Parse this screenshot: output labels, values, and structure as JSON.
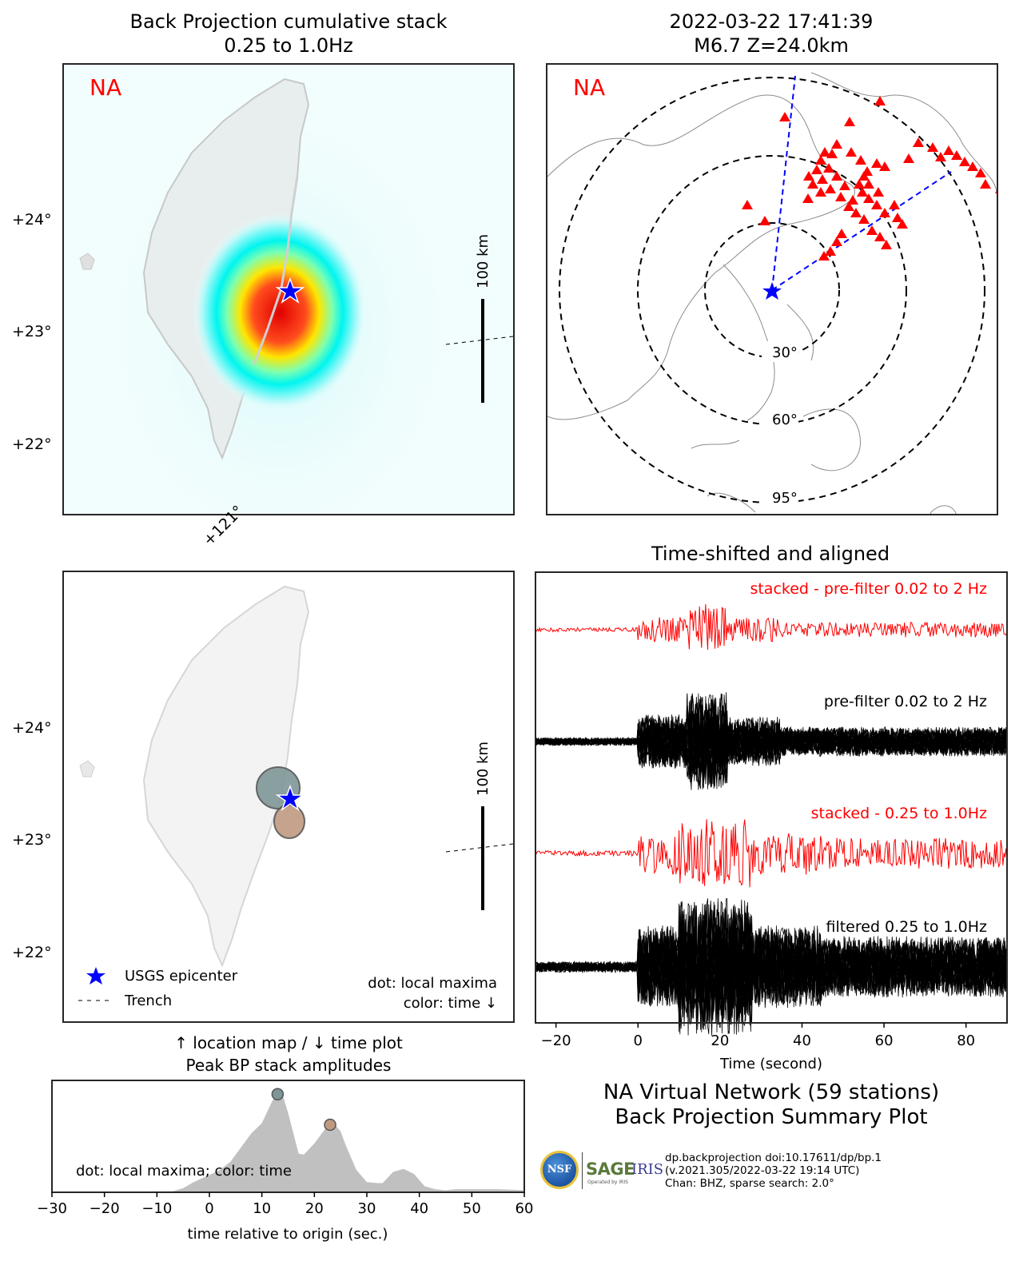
{
  "bp_map": {
    "title_line1": "Back Projection cumulative stack",
    "title_line2": "0.25 to 1.0Hz",
    "network_label": "NA",
    "lat_ticks": [
      "+24°",
      "+23°",
      "+22°"
    ],
    "lon_tick": "+121°",
    "scale_label": "100 km",
    "epicenter": {
      "lon": 121.55,
      "lat": 23.4
    }
  },
  "station_map": {
    "title_line1": "2022-03-22 17:41:39",
    "title_line2": "M6.7 Z=24.0km",
    "network_label": "NA",
    "distance_rings": [
      "30°",
      "60°",
      "95°"
    ],
    "station_count": 59,
    "colors": {
      "stations": "#ff0000",
      "azimuth_lines": "#0000ff",
      "rings": "#000000"
    }
  },
  "location_map": {
    "lat_ticks": [
      "+24°",
      "+23°",
      "+22°"
    ],
    "scale_label": "100 km",
    "legend": [
      {
        "label": "USGS epicenter",
        "symbol": "star",
        "color": "#0000ff"
      },
      {
        "label": "Trench",
        "symbol": "dashed-line",
        "color": "#000000"
      }
    ],
    "note_line1": "dot: local maxima",
    "note_line2": "color: time ↓",
    "maxima": [
      {
        "time": 13,
        "lon": 121.45,
        "lat": 23.47,
        "color": "#7f9696"
      },
      {
        "time": 23,
        "lon": 121.55,
        "lat": 23.18,
        "color": "#c09a80"
      }
    ]
  },
  "caption": {
    "line1": "↑ location map / ↓ time plot",
    "line2": "Peak BP stack amplitudes"
  },
  "waveforms": {
    "title": "Time-shifted and aligned",
    "xlabel": "Time (second)",
    "x_ticks": [
      -20,
      0,
      20,
      40,
      60,
      80
    ],
    "xlim": [
      -25,
      90
    ],
    "traces": [
      {
        "label": "stacked - pre-filter 0.02 to 2 Hz",
        "color": "#ff0000"
      },
      {
        "label": "pre-filter 0.02 to 2 Hz",
        "color": "#000000"
      },
      {
        "label": "stacked - 0.25 to 1.0Hz",
        "color": "#ff0000"
      },
      {
        "label": "filtered 0.25 to 1.0Hz",
        "color": "#000000"
      }
    ]
  },
  "summary": {
    "line1": "NA Virtual Network (59 stations)",
    "line2": "Back Projection Summary Plot",
    "credit_line1": "dp.backprojection doi:10.17611/dp/bp.1",
    "credit_line2": "(v.2021.305/2022-03-22 19:14 UTC)",
    "credit_line3": "Chan: BHZ, sparse search: 2.0°",
    "logo_nsf": "NSF",
    "logo_sage": "SAGE",
    "logo_iris": "IRIS",
    "logo_operated": "Operated by IRIS"
  },
  "chart_data": {
    "type": "area",
    "title": "Peak BP stack amplitudes",
    "xlabel": "time relative to origin (sec.)",
    "ylabel": "",
    "xlim": [
      -30,
      60
    ],
    "ylim": [
      0,
      1.1
    ],
    "x_ticks": [
      -30,
      -20,
      -10,
      0,
      10,
      20,
      30,
      40,
      50,
      60
    ],
    "annotation": "dot: local maxima; color: time",
    "x": [
      -30,
      -20,
      -10,
      -7,
      -5,
      -3,
      0,
      2,
      4,
      6,
      8,
      10,
      12,
      13,
      14,
      15,
      16,
      17,
      18,
      20,
      22,
      23,
      24,
      25,
      26,
      28,
      30,
      32,
      33,
      35,
      37,
      39,
      41,
      43,
      45,
      47,
      50,
      55,
      60
    ],
    "y": [
      0,
      0,
      0.01,
      0.01,
      0.04,
      0.1,
      0.17,
      0.22,
      0.3,
      0.44,
      0.58,
      0.68,
      0.9,
      0.98,
      0.95,
      0.78,
      0.58,
      0.38,
      0.37,
      0.48,
      0.62,
      0.68,
      0.66,
      0.6,
      0.46,
      0.22,
      0.1,
      0.09,
      0.09,
      0.2,
      0.23,
      0.18,
      0.06,
      0.03,
      0.02,
      0.03,
      0.03,
      0.03,
      0.02
    ],
    "maxima": [
      {
        "x": 13,
        "y": 0.98,
        "color": "#7f9696"
      },
      {
        "x": 23,
        "y": 0.68,
        "color": "#c09a80"
      }
    ],
    "fill_color": "#c0c0c0"
  }
}
